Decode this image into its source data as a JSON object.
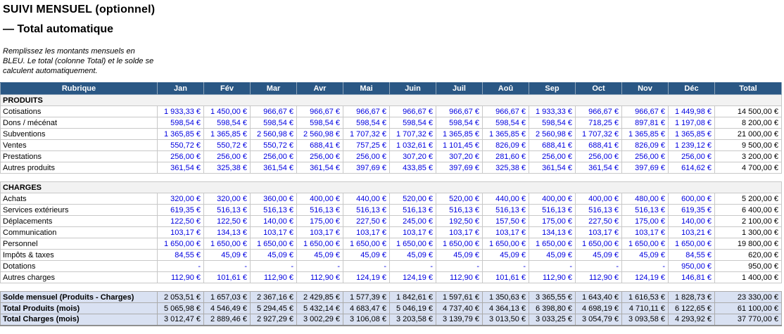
{
  "page": {
    "title": "SUIVI MENSUEL (optionnel)",
    "subtitle": "— Total automatique",
    "note": "Remplissez les montants mensuels en\nBLEU. Le total (colonne Total) et le solde se\ncalculent automatiquement."
  },
  "colors": {
    "header_bg": "#2A5784",
    "header_text": "#FFFFFF",
    "header_border": "#8FA5BA",
    "section_bg": "#F2F2F2",
    "summary_bg": "#D9E1F2",
    "grid_border": "#C8C8C8",
    "summary_border": "#ACACAC",
    "value_blue": "#0000E0",
    "table_bottom": "#8F8F8F"
  },
  "table": {
    "header": [
      "Rubrique",
      "Jan",
      "Fév",
      "Mar",
      "Avr",
      "Mai",
      "Juin",
      "Juil",
      "Aoû",
      "Sep",
      "Oct",
      "Nov",
      "Déc",
      "Total"
    ],
    "sections": [
      {
        "title": "PRODUITS",
        "rows": [
          {
            "label": "Cotisations",
            "values": [
              "1 933,33 €",
              "1 450,00 €",
              "966,67 €",
              "966,67 €",
              "966,67 €",
              "966,67 €",
              "966,67 €",
              "966,67 €",
              "1 933,33 €",
              "966,67 €",
              "966,67 €",
              "1 449,98 €",
              "14 500,00 €"
            ]
          },
          {
            "label": "Dons / mécénat",
            "values": [
              "598,54 €",
              "598,54 €",
              "598,54 €",
              "598,54 €",
              "598,54 €",
              "598,54 €",
              "598,54 €",
              "598,54 €",
              "598,54 €",
              "718,25 €",
              "897,81 €",
              "1 197,08 €",
              "8 200,00 €"
            ]
          },
          {
            "label": "Subventions",
            "values": [
              "1 365,85 €",
              "1 365,85 €",
              "2 560,98 €",
              "2 560,98 €",
              "1 707,32 €",
              "1 707,32 €",
              "1 365,85 €",
              "1 365,85 €",
              "2 560,98 €",
              "1 707,32 €",
              "1 365,85 €",
              "1 365,85 €",
              "21 000,00 €"
            ]
          },
          {
            "label": "Ventes",
            "values": [
              "550,72 €",
              "550,72 €",
              "550,72 €",
              "688,41 €",
              "757,25 €",
              "1 032,61 €",
              "1 101,45 €",
              "826,09 €",
              "688,41 €",
              "688,41 €",
              "826,09 €",
              "1 239,12 €",
              "9 500,00 €"
            ]
          },
          {
            "label": "Prestations",
            "values": [
              "256,00 €",
              "256,00 €",
              "256,00 €",
              "256,00 €",
              "256,00 €",
              "307,20 €",
              "307,20 €",
              "281,60 €",
              "256,00 €",
              "256,00 €",
              "256,00 €",
              "256,00 €",
              "3 200,00 €"
            ]
          },
          {
            "label": "Autres produits",
            "values": [
              "361,54 €",
              "325,38 €",
              "361,54 €",
              "361,54 €",
              "397,69 €",
              "433,85 €",
              "397,69 €",
              "325,38 €",
              "361,54 €",
              "361,54 €",
              "397,69 €",
              "614,62 €",
              "4 700,00 €"
            ]
          }
        ]
      },
      {
        "title": "CHARGES",
        "rows": [
          {
            "label": "Achats",
            "values": [
              "320,00 €",
              "320,00 €",
              "360,00 €",
              "400,00 €",
              "440,00 €",
              "520,00 €",
              "520,00 €",
              "440,00 €",
              "400,00 €",
              "400,00 €",
              "480,00 €",
              "600,00 €",
              "5 200,00 €"
            ]
          },
          {
            "label": "Services extérieurs",
            "values": [
              "619,35 €",
              "516,13 €",
              "516,13 €",
              "516,13 €",
              "516,13 €",
              "516,13 €",
              "516,13 €",
              "516,13 €",
              "516,13 €",
              "516,13 €",
              "516,13 €",
              "619,35 €",
              "6 400,00 €"
            ]
          },
          {
            "label": "Déplacements",
            "values": [
              "122,50 €",
              "122,50 €",
              "140,00 €",
              "175,00 €",
              "227,50 €",
              "245,00 €",
              "192,50 €",
              "157,50 €",
              "175,00 €",
              "227,50 €",
              "175,00 €",
              "140,00 €",
              "2 100,00 €"
            ]
          },
          {
            "label": "Communication",
            "values": [
              "103,17 €",
              "134,13 €",
              "103,17 €",
              "103,17 €",
              "103,17 €",
              "103,17 €",
              "103,17 €",
              "103,17 €",
              "134,13 €",
              "103,17 €",
              "103,17 €",
              "103,21 €",
              "1 300,00 €"
            ]
          },
          {
            "label": "Personnel",
            "values": [
              "1 650,00 €",
              "1 650,00 €",
              "1 650,00 €",
              "1 650,00 €",
              "1 650,00 €",
              "1 650,00 €",
              "1 650,00 €",
              "1 650,00 €",
              "1 650,00 €",
              "1 650,00 €",
              "1 650,00 €",
              "1 650,00 €",
              "19 800,00 €"
            ]
          },
          {
            "label": "Impôts & taxes",
            "values": [
              "84,55 €",
              "45,09 €",
              "45,09 €",
              "45,09 €",
              "45,09 €",
              "45,09 €",
              "45,09 €",
              "45,09 €",
              "45,09 €",
              "45,09 €",
              "45,09 €",
              "84,55 €",
              "620,00 €"
            ]
          },
          {
            "label": "Dotations",
            "values": [
              "-",
              "-",
              "-",
              "-",
              "-",
              "-",
              "-",
              "-",
              "-",
              "-",
              "-",
              "950,00 €",
              "950,00 €"
            ]
          },
          {
            "label": "Autres charges",
            "values": [
              "112,90 €",
              "101,61 €",
              "112,90 €",
              "112,90 €",
              "124,19 €",
              "124,19 €",
              "112,90 €",
              "101,61 €",
              "112,90 €",
              "112,90 €",
              "124,19 €",
              "146,81 €",
              "1 400,00 €"
            ]
          }
        ]
      }
    ],
    "summary_rows": [
      {
        "label": "Solde mensuel (Produits - Charges)",
        "values": [
          "2 053,51 €",
          "1 657,03 €",
          "2 367,16 €",
          "2 429,85 €",
          "1 577,39 €",
          "1 842,61 €",
          "1 597,61 €",
          "1 350,63 €",
          "3 365,55 €",
          "1 643,40 €",
          "1 616,53 €",
          "1 828,73 €",
          "23 330,00 €"
        ]
      },
      {
        "label": "Total Produits (mois)",
        "values": [
          "5 065,98 €",
          "4 546,49 €",
          "5 294,45 €",
          "5 432,14 €",
          "4 683,47 €",
          "5 046,19 €",
          "4 737,40 €",
          "4 364,13 €",
          "6 398,80 €",
          "4 698,19 €",
          "4 710,11 €",
          "6 122,65 €",
          "61 100,00 €"
        ]
      },
      {
        "label": "Total Charges (mois)",
        "values": [
          "3 012,47 €",
          "2 889,46 €",
          "2 927,29 €",
          "3 002,29 €",
          "3 106,08 €",
          "3 203,58 €",
          "3 139,79 €",
          "3 013,50 €",
          "3 033,25 €",
          "3 054,79 €",
          "3 093,58 €",
          "4 293,92 €",
          "37 770,00 €"
        ]
      }
    ]
  }
}
